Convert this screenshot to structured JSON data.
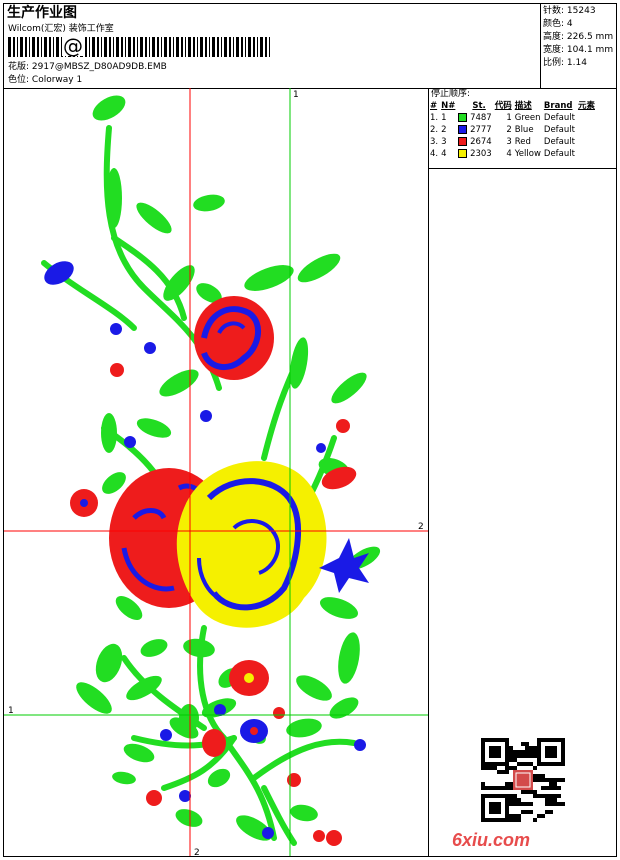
{
  "header": {
    "title": "生产作业图",
    "company": "Wilcom(汇宏) 装饰工作室",
    "at_symbol": "@",
    "pattern_label": "花版:",
    "pattern_value": "2917@MBSZ_D80AD9DB.EMB",
    "colorway_label": "色位:",
    "colorway_value": "Colorway 1"
  },
  "stats": {
    "stitches_label": "针数:",
    "stitches_value": "15243",
    "colors_label": "颜色:",
    "colors_value": "4",
    "height_label": "高度:",
    "height_value": "226.5 mm",
    "width_label": "宽度:",
    "width_value": "104.1 mm",
    "scale_label": "比例:",
    "scale_value": "1.14"
  },
  "stop_sequence": {
    "title": "停止顺序:",
    "columns": [
      "#",
      "N#",
      "St.",
      "代码",
      "描述",
      "Brand",
      "元素"
    ],
    "rows": [
      {
        "num": "1.",
        "n": "1",
        "color": "#22dd22",
        "st": "7487",
        "code": "1",
        "desc": "Green",
        "brand": "Default"
      },
      {
        "num": "2.",
        "n": "2",
        "color": "#1a1ae6",
        "st": "2777",
        "code": "2",
        "desc": "Blue",
        "brand": "Default"
      },
      {
        "num": "3.",
        "n": "3",
        "color": "#ee1c1c",
        "st": "2674",
        "code": "3",
        "desc": "Red",
        "brand": "Default"
      },
      {
        "num": "4.",
        "n": "4",
        "color": "#f5f000",
        "st": "2303",
        "code": "4",
        "desc": "Yellow",
        "brand": "Default"
      }
    ]
  },
  "guides": {
    "green_vertical_label": "1",
    "green_horizontal_label": "1",
    "red_vertical_label": "2",
    "red_horizontal_label": "2"
  },
  "colors": {
    "green": "#22dd22",
    "blue": "#1a1ae6",
    "red": "#ee1c1c",
    "yellow": "#f5f000",
    "guide_red": "#ff0000",
    "guide_green": "#00cc00"
  },
  "footer": {
    "logo": "6xiu.com"
  }
}
